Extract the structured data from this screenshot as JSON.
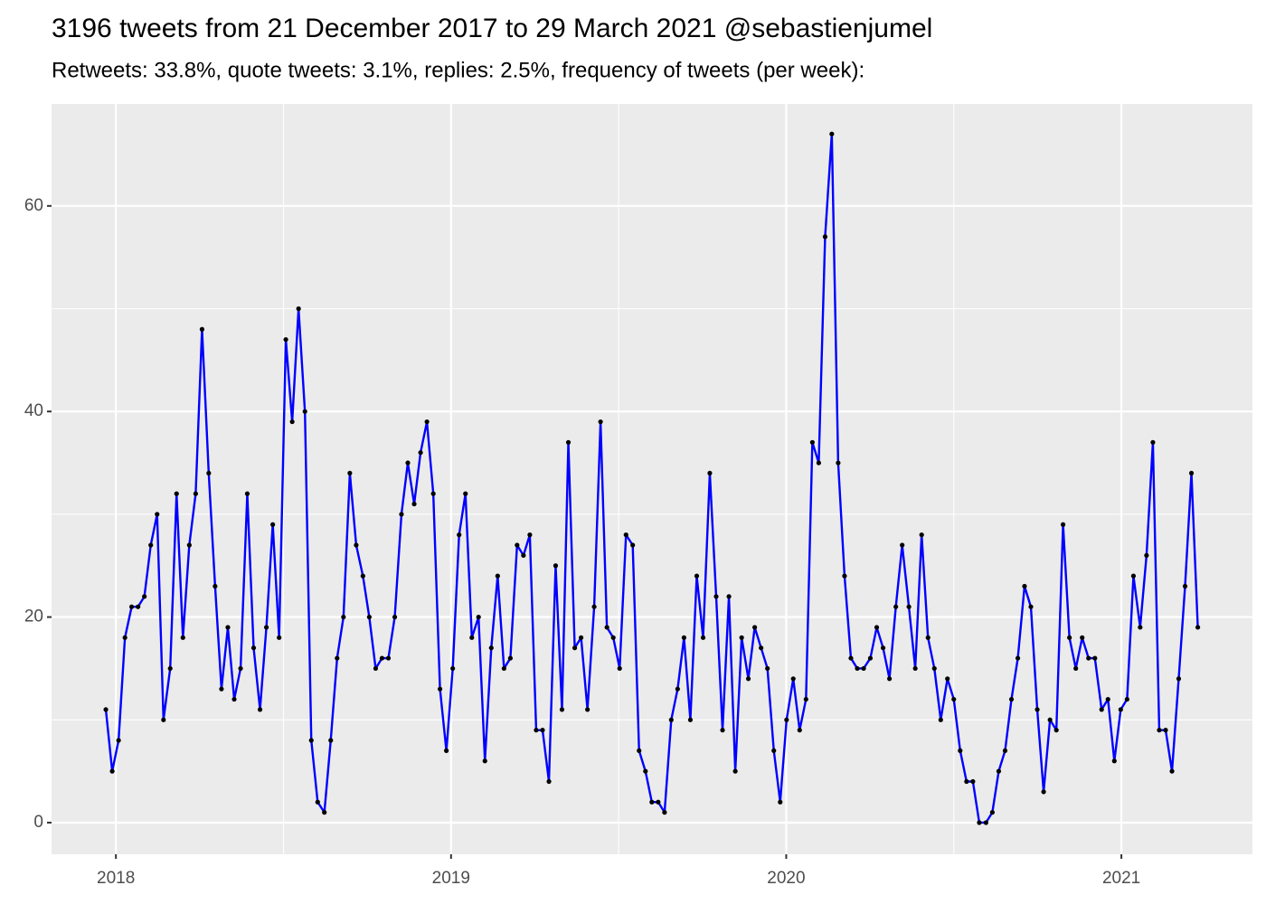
{
  "chart_data": {
    "type": "line",
    "title": "3196 tweets from 21 December 2017 to 29 March 2021 @sebastienjumel",
    "subtitle": "Retweets: 33.8%, quote tweets: 3.1%, replies: 2.5%, frequency of tweets (per week):",
    "x": [
      2017.97,
      2017.989,
      2018.008,
      2018.027,
      2018.047,
      2018.066,
      2018.085,
      2018.104,
      2018.123,
      2018.142,
      2018.162,
      2018.181,
      2018.2,
      2018.219,
      2018.238,
      2018.257,
      2018.277,
      2018.296,
      2018.315,
      2018.334,
      2018.353,
      2018.372,
      2018.392,
      2018.411,
      2018.43,
      2018.449,
      2018.468,
      2018.487,
      2018.507,
      2018.526,
      2018.545,
      2018.564,
      2018.583,
      2018.602,
      2018.622,
      2018.641,
      2018.66,
      2018.679,
      2018.698,
      2018.717,
      2018.737,
      2018.756,
      2018.775,
      2018.794,
      2018.813,
      2018.832,
      2018.852,
      2018.871,
      2018.89,
      2018.909,
      2018.928,
      2018.947,
      2018.967,
      2018.986,
      2019.005,
      2019.024,
      2019.043,
      2019.062,
      2019.082,
      2019.101,
      2019.12,
      2019.139,
      2019.158,
      2019.177,
      2019.197,
      2019.216,
      2019.235,
      2019.254,
      2019.273,
      2019.292,
      2019.312,
      2019.331,
      2019.35,
      2019.369,
      2019.388,
      2019.407,
      2019.427,
      2019.446,
      2019.465,
      2019.484,
      2019.503,
      2019.522,
      2019.542,
      2019.561,
      2019.58,
      2019.599,
      2019.618,
      2019.637,
      2019.657,
      2019.676,
      2019.695,
      2019.714,
      2019.733,
      2019.752,
      2019.772,
      2019.791,
      2019.81,
      2019.829,
      2019.848,
      2019.867,
      2019.887,
      2019.906,
      2019.925,
      2019.944,
      2019.963,
      2019.982,
      2020.001,
      2020.021,
      2020.04,
      2020.059,
      2020.078,
      2020.097,
      2020.116,
      2020.136,
      2020.155,
      2020.174,
      2020.193,
      2020.212,
      2020.231,
      2020.251,
      2020.27,
      2020.289,
      2020.308,
      2020.327,
      2020.346,
      2020.366,
      2020.385,
      2020.404,
      2020.423,
      2020.442,
      2020.461,
      2020.481,
      2020.5,
      2020.519,
      2020.538,
      2020.557,
      2020.576,
      2020.596,
      2020.615,
      2020.634,
      2020.653,
      2020.672,
      2020.691,
      2020.711,
      2020.73,
      2020.749,
      2020.768,
      2020.787,
      2020.806,
      2020.826,
      2020.845,
      2020.864,
      2020.883,
      2020.902,
      2020.921,
      2020.941,
      2020.96,
      2020.979,
      2020.998,
      2021.017,
      2021.036,
      2021.056,
      2021.075,
      2021.094,
      2021.113,
      2021.132,
      2021.151,
      2021.171,
      2021.19,
      2021.209,
      2021.228
    ],
    "series": [
      {
        "name": "tweets",
        "color": "#0000ff",
        "marker_color": "#000000",
        "values": [
          11,
          5,
          8,
          18,
          21,
          21,
          22,
          27,
          30,
          10,
          15,
          32,
          18,
          27,
          32,
          48,
          34,
          23,
          13,
          19,
          12,
          15,
          32,
          17,
          11,
          19,
          29,
          18,
          47,
          39,
          50,
          40,
          8,
          2,
          1,
          8,
          16,
          20,
          34,
          27,
          24,
          20,
          15,
          16,
          16,
          20,
          30,
          35,
          31,
          36,
          39,
          32,
          13,
          7,
          15,
          28,
          32,
          18,
          20,
          6,
          17,
          24,
          15,
          16,
          27,
          26,
          28,
          9,
          9,
          4,
          25,
          11,
          37,
          17,
          18,
          11,
          21,
          39,
          19,
          18,
          15,
          28,
          27,
          7,
          5,
          2,
          2,
          1,
          10,
          13,
          18,
          10,
          24,
          18,
          34,
          22,
          9,
          22,
          5,
          18,
          14,
          19,
          17,
          15,
          7,
          2,
          10,
          14,
          9,
          12,
          37,
          35,
          57,
          67,
          35,
          24,
          16,
          15,
          15,
          16,
          19,
          17,
          14,
          21,
          27,
          21,
          15,
          28,
          18,
          15,
          10,
          14,
          12,
          7,
          4,
          4,
          0,
          0,
          1,
          5,
          7,
          12,
          16,
          23,
          21,
          11,
          3,
          10,
          9,
          29,
          18,
          15,
          18,
          16,
          16,
          11,
          12,
          6,
          11,
          12,
          24,
          19,
          26,
          37,
          9,
          9,
          5,
          14,
          23,
          34,
          19
        ]
      }
    ],
    "xlim": [
      2017.808,
      2021.391
    ],
    "xticks": [
      2018,
      2019,
      2020,
      2021
    ],
    "ylim": [
      -3.08,
      69.92
    ],
    "yticks": [
      0,
      20,
      40,
      60
    ],
    "grid": true,
    "panel_color": "#ebebeb"
  }
}
